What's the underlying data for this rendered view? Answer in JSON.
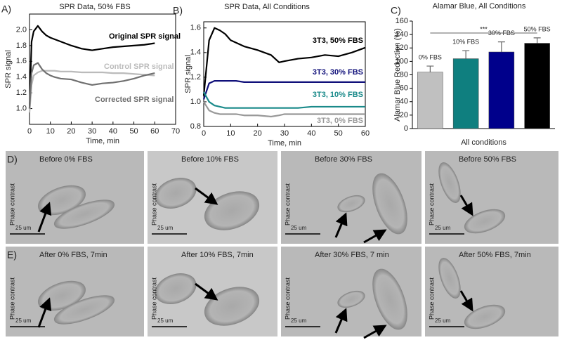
{
  "chart_data": [
    {
      "type": "line",
      "label": "A)",
      "title": "SPR Data, 50% FBS",
      "x_label": "Time, min",
      "y_label": "SPR signal",
      "x": [
        0,
        1,
        2,
        4,
        6,
        8,
        10,
        12,
        15,
        20,
        25,
        30,
        35,
        40,
        45,
        50,
        55,
        60
      ],
      "series": [
        {
          "name": "Original SPR signal",
          "color": "#000000",
          "values": [
            1.0,
            1.85,
            1.98,
            2.05,
            1.98,
            1.93,
            1.9,
            1.88,
            1.85,
            1.8,
            1.76,
            1.74,
            1.76,
            1.78,
            1.79,
            1.8,
            1.81,
            1.83
          ]
        },
        {
          "name": "Control SPR signal",
          "color": "#bbbbbb",
          "values": [
            0.95,
            1.3,
            1.42,
            1.46,
            1.48,
            1.48,
            1.48,
            1.48,
            1.47,
            1.47,
            1.46,
            1.46,
            1.46,
            1.45,
            1.45,
            1.44,
            1.43,
            1.42
          ]
        },
        {
          "name": "Corrected SPR signal",
          "color": "#707070",
          "values": [
            1.0,
            1.45,
            1.55,
            1.58,
            1.5,
            1.45,
            1.42,
            1.4,
            1.38,
            1.37,
            1.33,
            1.3,
            1.32,
            1.33,
            1.35,
            1.38,
            1.42,
            1.45
          ]
        }
      ],
      "xlim": [
        0,
        70
      ],
      "xticks": [
        0,
        10,
        20,
        30,
        40,
        50,
        60,
        70
      ],
      "ylim": [
        0.8,
        2.2
      ],
      "yticks": [
        {
          "value": 1,
          "label": "1.0"
        },
        1.2,
        1.4,
        1.6,
        1.8,
        {
          "value": 2,
          "label": "2.0"
        }
      ]
    },
    {
      "type": "line",
      "label": "B)",
      "title": "SPR Data, All Conditions",
      "x_label": "Time, min",
      "y_label": "SPR signal",
      "x": [
        0,
        2,
        4,
        6,
        8,
        10,
        12,
        15,
        20,
        25,
        28,
        30,
        35,
        40,
        45,
        50,
        55,
        60
      ],
      "series": [
        {
          "name": "3T3, 50% FBS",
          "color": "#000000",
          "values": [
            1.05,
            1.5,
            1.6,
            1.58,
            1.55,
            1.5,
            1.48,
            1.45,
            1.42,
            1.38,
            1.32,
            1.33,
            1.35,
            1.36,
            1.38,
            1.37,
            1.4,
            1.44
          ]
        },
        {
          "name": "3T3, 30% FBS",
          "color": "#10107a",
          "values": [
            1.02,
            1.15,
            1.17,
            1.17,
            1.17,
            1.17,
            1.17,
            1.16,
            1.16,
            1.16,
            1.16,
            1.16,
            1.16,
            1.16,
            1.16,
            1.16,
            1.16,
            1.16
          ]
        },
        {
          "name": "3T3, 10% FBS",
          "color": "#1a8a8a",
          "values": [
            1.08,
            1.0,
            0.97,
            0.96,
            0.95,
            0.95,
            0.95,
            0.95,
            0.95,
            0.95,
            0.95,
            0.95,
            0.95,
            0.96,
            0.96,
            0.96,
            0.96,
            0.96
          ]
        },
        {
          "name": "3T3, 0% FBS",
          "color": "#999999",
          "values": [
            1.0,
            0.93,
            0.91,
            0.9,
            0.9,
            0.9,
            0.9,
            0.89,
            0.89,
            0.88,
            0.89,
            0.9,
            0.9,
            0.9,
            0.9,
            0.9,
            0.9,
            0.9
          ]
        }
      ],
      "xlim": [
        0,
        60
      ],
      "xticks": [
        0,
        10,
        20,
        30,
        40,
        50,
        60
      ],
      "ylim": [
        0.8,
        1.65
      ],
      "yticks": [
        0.8,
        {
          "value": 1,
          "label": "1.0"
        },
        1.2,
        1.4,
        1.6
      ]
    },
    {
      "type": "bar",
      "label": "C)",
      "title": "Alamar Blue, All Conditions",
      "x_label": "All conditions",
      "y_label": "Alamar Blue Reduction (%)",
      "annotation": "***",
      "categories": [
        "0% FBS",
        "10% FBS",
        "30% FBS",
        "50% FBS"
      ],
      "values": [
        84,
        104,
        114,
        127
      ],
      "errors": [
        9,
        12,
        15,
        8
      ],
      "colors": [
        "#c0c0c0",
        "#0f7f7f",
        "#00008b",
        "#000000"
      ],
      "ylim": [
        0,
        160
      ],
      "yticks": [
        0,
        20,
        40,
        60,
        80,
        100,
        120,
        140,
        160
      ]
    }
  ],
  "micrographs": {
    "rows": [
      {
        "label": "D)",
        "panels": [
          {
            "caption": "Before 0% FBS",
            "side": "Phase contrast",
            "scale": "25 um"
          },
          {
            "caption": "Before 10% FBS",
            "side": "Phase contrast",
            "scale": "25 um"
          },
          {
            "caption": "Before 30% FBS",
            "side": "Phase contrast",
            "scale": "25 um"
          },
          {
            "caption": "Before 50% FBS",
            "side": "Phase contrast",
            "scale": "25 um"
          }
        ]
      },
      {
        "label": "E)",
        "panels": [
          {
            "caption": "After 0% FBS, 7min",
            "side": "Phase contrast",
            "scale": "25 um"
          },
          {
            "caption": "After 10% FBS, 7min",
            "side": "Phase contrast",
            "scale": "25 um"
          },
          {
            "caption": "After 30% FBS, 7 min",
            "side": "Phase contrast",
            "scale": "25 um"
          },
          {
            "caption": "After 50% FBS, 7min",
            "side": "Phase contrast",
            "scale": "25 um"
          }
        ]
      }
    ]
  }
}
